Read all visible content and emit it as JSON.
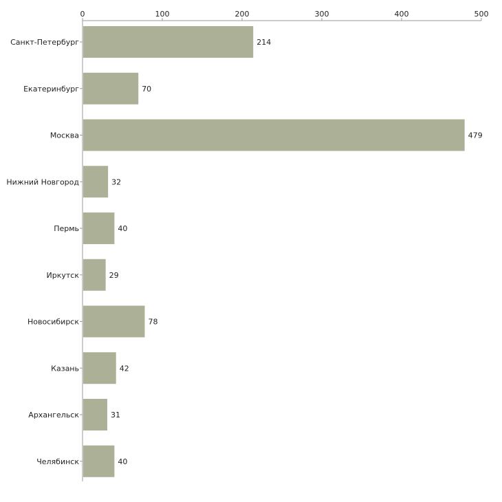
{
  "chart_data": {
    "type": "bar",
    "orientation": "horizontal",
    "title": "",
    "xlabel": "",
    "ylabel": "",
    "xlim": [
      0,
      500
    ],
    "x_ticks": [
      0,
      100,
      200,
      300,
      400,
      500
    ],
    "x_tick_labels": [
      "0",
      "100",
      "200",
      "300",
      "400",
      "500"
    ],
    "grid": false,
    "categories": [
      "Санкт-Петербург",
      "Екатеринбург",
      "Москва",
      "Нижний Новгород",
      "Пермь",
      "Иркутск",
      "Новосибирск",
      "Казань",
      "Архангельск",
      "Челябинск"
    ],
    "values": [
      214,
      70,
      479,
      32,
      40,
      29,
      78,
      42,
      31,
      40
    ],
    "data_labels": [
      "214",
      "70",
      "479",
      "32",
      "40",
      "29",
      "78",
      "42",
      "31",
      "40"
    ],
    "bar_color": "#abb096"
  }
}
